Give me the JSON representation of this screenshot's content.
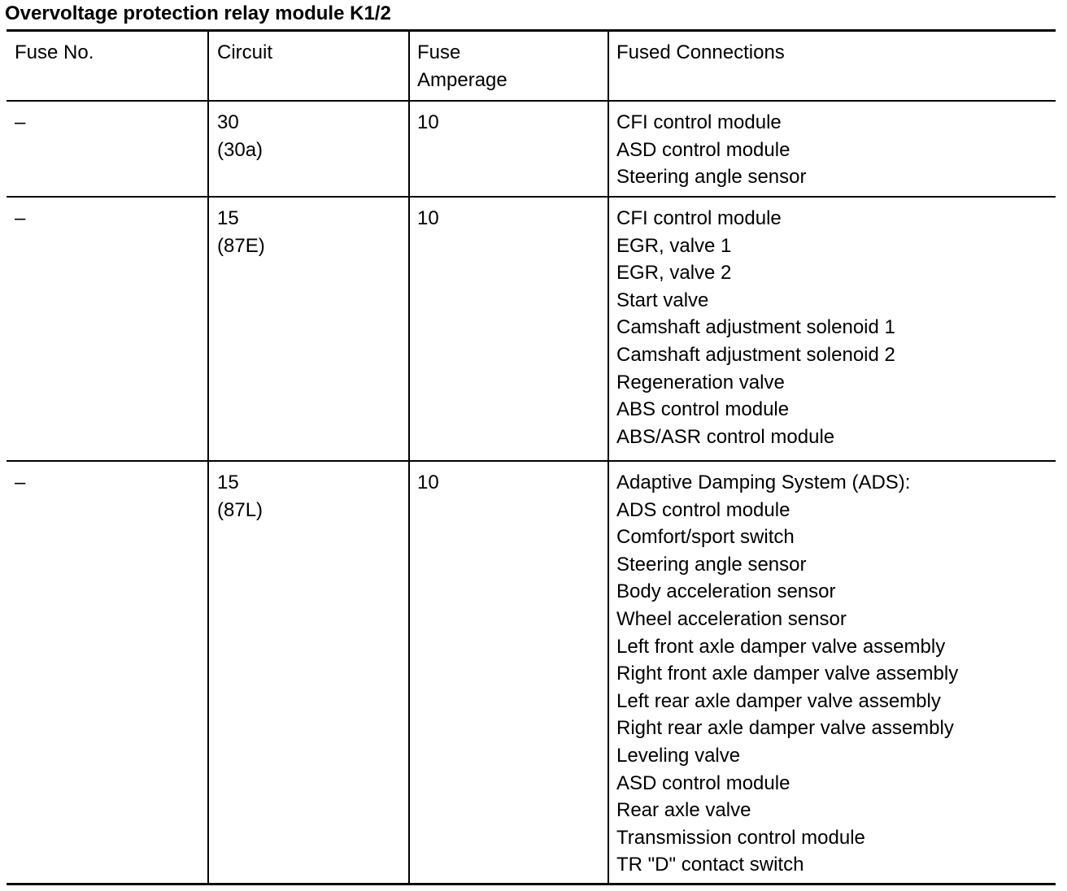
{
  "title": "Overvoltage protection relay module K1/2",
  "table": {
    "headers": [
      [
        "Fuse No."
      ],
      [
        "Circuit"
      ],
      [
        "Fuse",
        "Amperage"
      ],
      [
        "Fused Connections"
      ]
    ],
    "rows": [
      [
        [
          "–"
        ],
        [
          "30",
          "(30a)"
        ],
        [
          "10"
        ],
        [
          "CFI control module",
          "ASD control module",
          "Steering angle sensor"
        ]
      ],
      [
        [
          "–"
        ],
        [
          "15",
          "(87E)"
        ],
        [
          "10"
        ],
        [
          "CFI control module",
          "EGR, valve 1",
          "EGR, valve 2",
          "Start valve",
          "Camshaft adjustment solenoid 1",
          "Camshaft adjustment solenoid 2",
          "Regeneration valve",
          "ABS control module",
          "ABS/ASR control module"
        ]
      ],
      [
        [
          "–"
        ],
        [
          "15",
          "(87L)"
        ],
        [
          "10"
        ],
        [
          "Adaptive Damping System (ADS):",
          "ADS control module",
          "Comfort/sport switch",
          "Steering angle sensor",
          "Body acceleration sensor",
          "Wheel acceleration sensor",
          "Left front axle damper valve assembly",
          "Right front axle damper valve assembly",
          "Left rear axle damper valve assembly",
          "Right rear axle damper valve assembly",
          "Leveling valve",
          "ASD control module",
          "Rear axle valve",
          "Transmission control module",
          "TR \"D\" contact switch"
        ]
      ]
    ]
  }
}
